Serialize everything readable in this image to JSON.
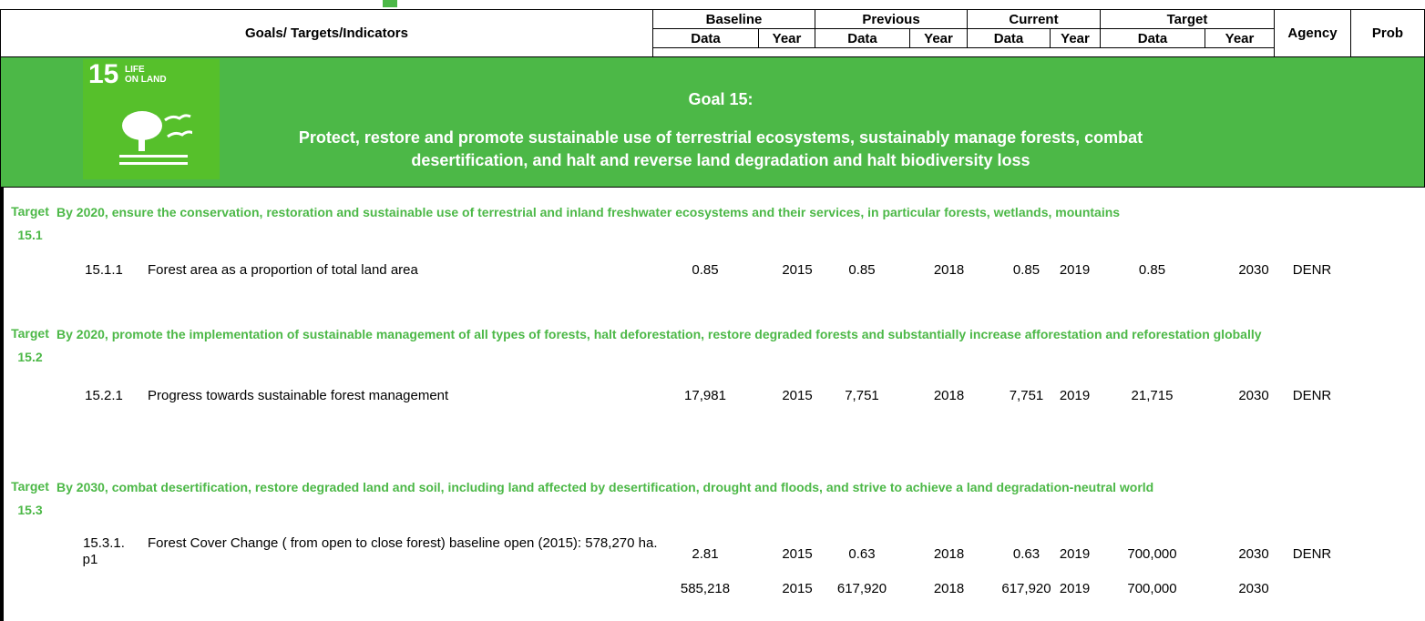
{
  "header": {
    "title": "Goals/ Targets/Indicators",
    "groups": [
      "Baseline",
      "Previous",
      "Current",
      "Target"
    ],
    "subheaders": [
      "Data",
      "Year",
      "Data",
      "Year",
      "Data",
      "Year",
      "Data",
      "Year"
    ],
    "agency": "Agency",
    "prob": "Prob"
  },
  "goal": {
    "icon_number": "15",
    "icon_text": [
      "LIFE",
      "ON LAND"
    ],
    "heading": "Goal 15:",
    "description": "Protect, restore and promote sustainable use of terrestrial ecosystems, sustainably manage forests, combat desertification, and halt and reverse land degradation and halt biodiversity loss"
  },
  "targets": [
    {
      "label": "Target",
      "number": "15.1",
      "text": "By 2020, ensure the conservation, restoration and sustainable use of terrestrial and inland freshwater ecosystems and their services, in particular forests, wetlands, mountains",
      "indicators": [
        {
          "code": "15.1.1",
          "name": "Forest area as a proportion of total land area",
          "rows": [
            [
              "0.85",
              "2015",
              "0.85",
              "2018",
              "0.85",
              "2019",
              "0.85",
              "2030",
              "DENR"
            ]
          ]
        }
      ]
    },
    {
      "label": "Target",
      "number": "15.2",
      "text": "By 2020, promote the implementation of sustainable management of all types of forests, halt deforestation, restore degraded forests and substantially increase afforestation and reforestation globally",
      "indicators": [
        {
          "code": "15.2.1",
          "name": "Progress towards sustainable forest management",
          "rows": [
            [
              "17,981",
              "2015",
              "7,751",
              "2018",
              "7,751",
              "2019",
              "21,715",
              "2030",
              "DENR"
            ]
          ]
        }
      ]
    },
    {
      "label": "Target",
      "number": "15.3",
      "text": "By 2030, combat desertification, restore degraded land and soil, including land affected by desertification, drought and floods, and strive to achieve a land degradation-neutral world",
      "indicators": [
        {
          "code": "15.3.1.",
          "code_suffix": "p1",
          "name": "Forest Cover Change ( from open to close forest) baseline open (2015): 578,270 ha.",
          "rows": [
            [
              "2.81",
              "2015",
              "0.63",
              "2018",
              "0.63",
              "2019",
              "700,000",
              "2030",
              "DENR"
            ],
            [
              "585,218",
              "2015",
              "617,920",
              "2018",
              "617,920",
              "2019",
              "700,000",
              "2030"
            ]
          ]
        }
      ]
    }
  ]
}
